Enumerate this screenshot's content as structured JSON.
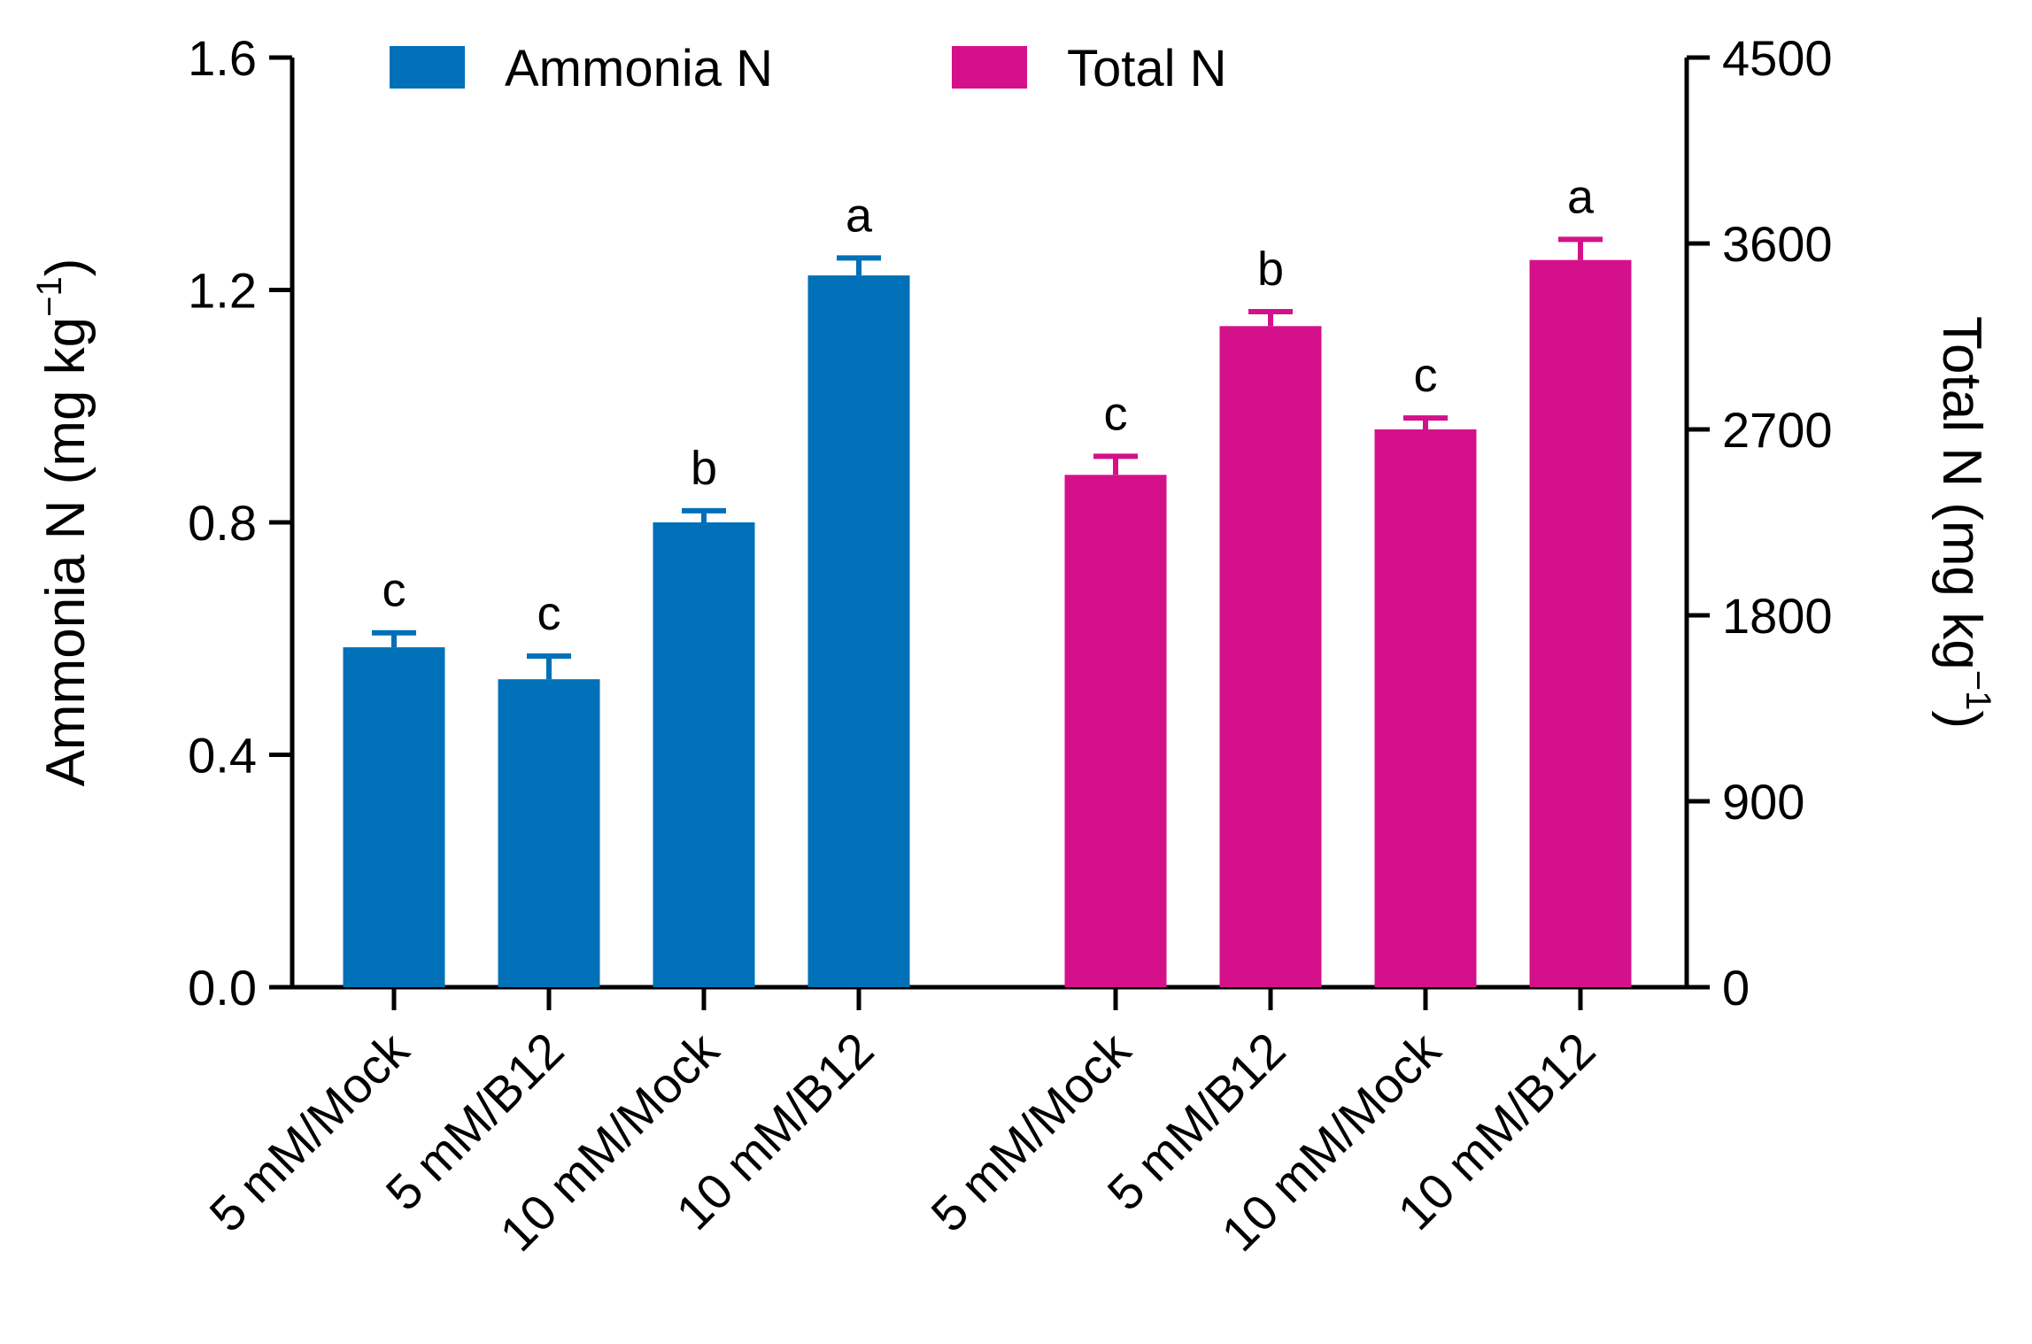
{
  "chart_data": {
    "type": "bar",
    "categories": [
      "5 mM/Mock",
      "5 mM/B12",
      "10 mM/Mock",
      "10 mM/B12"
    ],
    "series": [
      {
        "name": "Ammonia N",
        "axis": "left",
        "color": "#0070b8",
        "values": [
          0.585,
          0.53,
          0.8,
          1.225
        ],
        "errors": [
          0.025,
          0.04,
          0.02,
          0.03
        ],
        "significance": [
          "c",
          "c",
          "b",
          "a"
        ]
      },
      {
        "name": "Total N",
        "axis": "right",
        "color": "#d4118a",
        "values": [
          2480,
          3200,
          2700,
          3520
        ],
        "errors": [
          90,
          70,
          55,
          100
        ],
        "significance": [
          "c",
          "b",
          "c",
          "a"
        ]
      }
    ],
    "left_axis": {
      "label_main": "Ammonia N (mg kg",
      "label_sup": "−1",
      "label_end": ")",
      "ylim": [
        0,
        1.6
      ],
      "ticks": [
        "0.0",
        "0.4",
        "0.8",
        "1.2",
        "1.6"
      ]
    },
    "right_axis": {
      "label_main": "Total N (mg kg",
      "label_sup": "−1",
      "label_end": ")",
      "ylim": [
        0,
        4500
      ],
      "ticks": [
        "0",
        "900",
        "1800",
        "2700",
        "3600",
        "4500"
      ]
    },
    "legend": {
      "placement": "top",
      "entries": [
        "Ammonia N",
        "Total N"
      ]
    },
    "grid": false
  }
}
